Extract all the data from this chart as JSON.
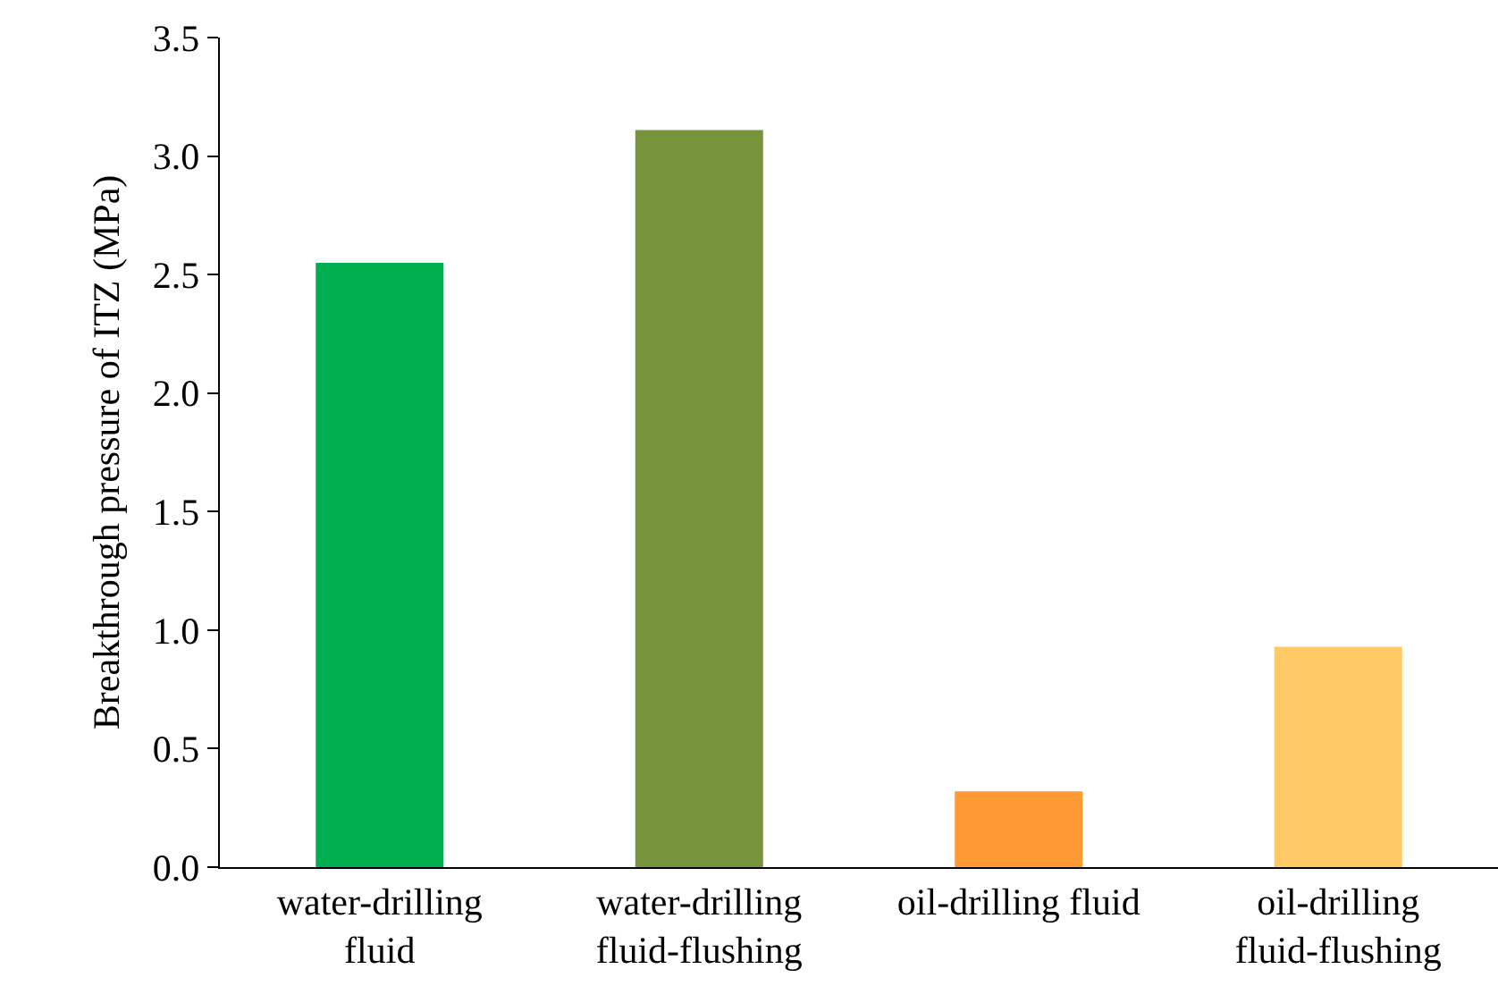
{
  "chart_data": {
    "type": "bar",
    "ylabel": "Breakthrough pressure of ITZ (MPa)",
    "categories": [
      "water-drilling\nfluid",
      "water-drilling\nfluid-flushing",
      "oil-drilling fluid",
      "oil-drilling\nfluid-flushing"
    ],
    "values": [
      2.55,
      3.11,
      0.32,
      0.93
    ],
    "colors": [
      "#00b050",
      "#77933c",
      "#ff9933",
      "#ffc966"
    ],
    "ylim": [
      0,
      3.5
    ],
    "yticks": [
      {
        "value": 0,
        "label": "0.0"
      },
      {
        "value": 0.5,
        "label": "0.5"
      },
      {
        "value": 1,
        "label": "1.0"
      },
      {
        "value": 1.5,
        "label": "1.5"
      },
      {
        "value": 2,
        "label": "2.0"
      },
      {
        "value": 2.5,
        "label": "2.5"
      },
      {
        "value": 3,
        "label": "3.0"
      },
      {
        "value": 3.5,
        "label": "3.5"
      }
    ],
    "grid": false
  }
}
